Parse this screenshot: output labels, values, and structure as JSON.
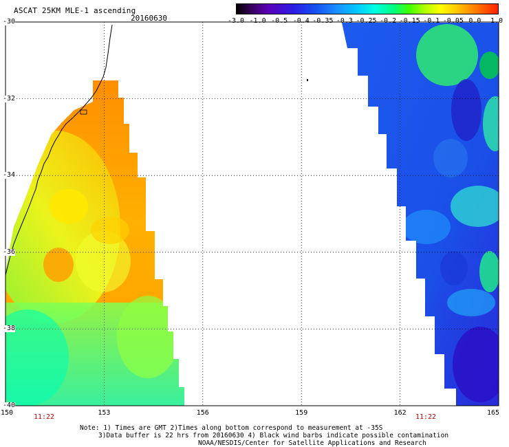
{
  "header": {
    "title": "ASCAT 25KM MLE-1 ascending",
    "date": "20160630"
  },
  "colorbar": {
    "labels": [
      "-3.0",
      "-1.0",
      "-0.5",
      "-0.4",
      "-0.35",
      "-0.3",
      "-0.25",
      "-0.2",
      "-0.15",
      "-0.1",
      "-0.05",
      "0.0",
      "1.0"
    ]
  },
  "map": {
    "lat_labels": [
      "-30",
      "-32",
      "-34",
      "-36",
      "-38",
      "-40"
    ],
    "lon_labels": [
      "150",
      "153",
      "156",
      "159",
      "162",
      "165"
    ],
    "swath_times": [
      "11:22",
      "11:22"
    ]
  },
  "notes": {
    "line1": "Note: 1) Times are GMT 2)Times along bottom correspond to measurement at -35S",
    "line2": "3)Data buffer is 22 hrs from 20160630 4) Black wind barbs indicate possible contamination",
    "line3": "NOAA/NESDIS/Center for Satellite Applications and Research"
  }
}
